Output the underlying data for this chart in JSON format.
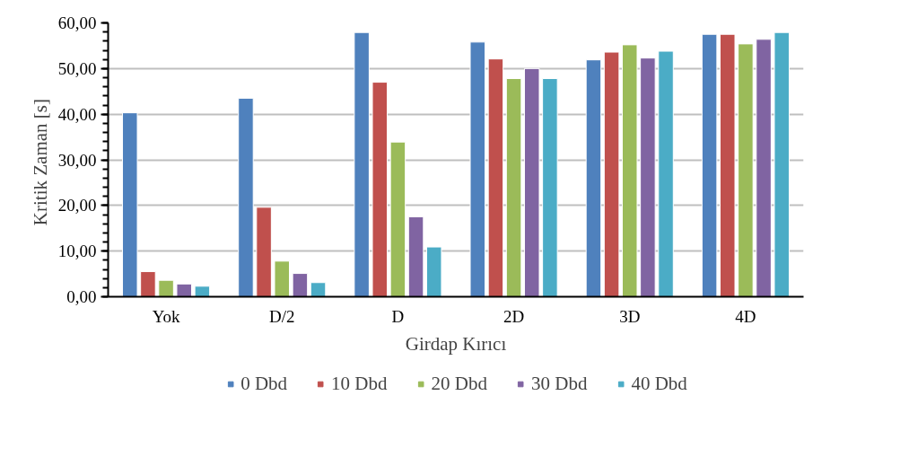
{
  "chart_data": {
    "type": "bar",
    "xlabel": "Girdap Kırıcı",
    "ylabel": "Kritik  Zaman [s]",
    "categories": [
      "Yok",
      "D/2",
      "D",
      "2D",
      "3D",
      "4D"
    ],
    "series": [
      {
        "name": "0 Dbd",
        "color": "#4f81bd",
        "values": [
          40.3,
          43.5,
          57.9,
          55.8,
          51.9,
          57.5
        ]
      },
      {
        "name": "10 Dbd",
        "color": "#c0504d",
        "values": [
          5.5,
          19.6,
          47.0,
          52.1,
          53.6,
          57.5
        ]
      },
      {
        "name": "20 Dbd",
        "color": "#9bbb59",
        "values": [
          3.6,
          7.8,
          33.9,
          47.8,
          55.2,
          55.4
        ]
      },
      {
        "name": "30 Dbd",
        "color": "#8064a2",
        "values": [
          2.8,
          5.1,
          17.5,
          50.0,
          52.3,
          56.4
        ]
      },
      {
        "name": "40 Dbd",
        "color": "#4bacc6",
        "values": [
          2.3,
          3.1,
          10.9,
          47.8,
          53.8,
          57.9
        ]
      }
    ],
    "ylim": [
      0,
      60
    ],
    "yticks": [
      {
        "value": 0,
        "label": "0,00"
      },
      {
        "value": 10,
        "label": "10,00"
      },
      {
        "value": 20,
        "label": "20,00"
      },
      {
        "value": 30,
        "label": "30,00"
      },
      {
        "value": 40,
        "label": "40,00"
      },
      {
        "value": 50,
        "label": "50,00"
      },
      {
        "value": 60,
        "label": "60,00"
      }
    ],
    "grid": "y",
    "legend": "bottom"
  }
}
